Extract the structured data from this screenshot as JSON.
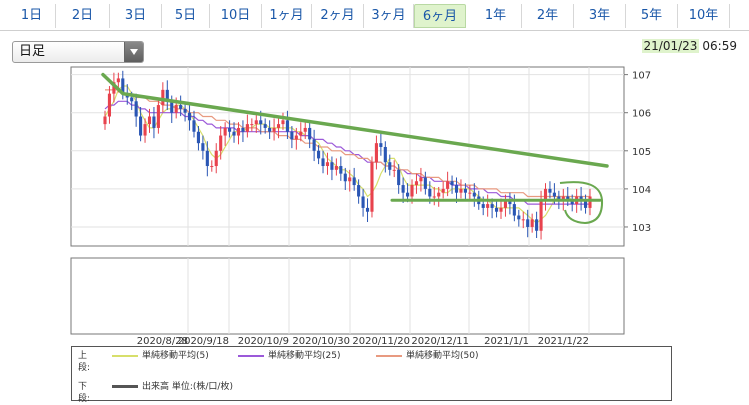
{
  "period_tabs": [
    "1日",
    "2日",
    "3日",
    "5日",
    "10日",
    "1ヶ月",
    "2ヶ月",
    "3ヶ月",
    "6ヶ月",
    "1年",
    "2年",
    "3年",
    "5年",
    "10年"
  ],
  "active_tab": "6ヶ月",
  "interval_select": {
    "value": "日足"
  },
  "datestamp": {
    "date": "21/01/23",
    "time": "06:59"
  },
  "colors": {
    "up": "#e8424d",
    "down": "#2a56b4",
    "ma5": "#d7df6b",
    "ma25": "#9b59d9",
    "ma50": "#e89a80",
    "trendline": "#6aa84f",
    "accent_tab": "#dff3cc"
  },
  "legend": {
    "upper_title": "上段:",
    "lower_title": "下段:",
    "ma5": "単純移動平均(5)",
    "ma25": "単純移動平均(25)",
    "ma50": "単純移動平均(50)",
    "volume": "出来高 単位:(株/口/枚)"
  },
  "chart_data": {
    "type": "candlestick",
    "y_ticks": [
      103,
      104,
      105,
      106,
      107
    ],
    "ylim": [
      102.5,
      107.2
    ],
    "x_ticks": [
      "2020/8/28",
      "2020/9/18",
      "2020/10/9",
      "2020/10/30",
      "2020/11/20",
      "2020/12/11",
      "2021/1/1",
      "2021/1/22"
    ],
    "close": [
      105.9,
      106.5,
      106.8,
      106.9,
      106.5,
      106.4,
      106.3,
      105.9,
      105.4,
      105.7,
      105.9,
      105.6,
      106.2,
      106.6,
      106.3,
      106.0,
      106.2,
      106.1,
      106.0,
      105.8,
      105.5,
      105.2,
      105.0,
      104.6,
      104.6,
      105.0,
      105.4,
      105.6,
      105.5,
      105.4,
      105.6,
      105.5,
      105.7,
      105.7,
      105.8,
      105.7,
      105.6,
      105.5,
      105.6,
      105.7,
      105.8,
      105.5,
      105.3,
      105.4,
      105.5,
      105.6,
      105.3,
      105.0,
      104.8,
      104.6,
      104.7,
      104.5,
      104.6,
      104.4,
      104.2,
      104.3,
      104.1,
      103.8,
      103.5,
      103.4,
      104.7,
      105.2,
      105.1,
      104.7,
      104.5,
      104.5,
      104.1,
      103.9,
      103.8,
      104.1,
      104.2,
      104.3,
      104.0,
      103.8,
      103.8,
      103.9,
      104.0,
      104.2,
      104.1,
      103.9,
      104.0,
      103.9,
      103.9,
      103.8,
      103.6,
      103.5,
      103.6,
      103.5,
      103.4,
      103.5,
      103.7,
      103.6,
      103.3,
      103.2,
      103.2,
      103.0,
      103.2,
      102.9,
      103.7,
      104.0,
      103.9,
      103.8,
      103.7,
      103.8,
      103.7,
      103.6,
      103.8,
      103.7,
      103.5,
      103.8
    ],
    "ma_series": [
      {
        "name": "単純移動平均(5)",
        "values": [
          105.9,
          106.1,
          106.3,
          106.6,
          106.7,
          106.7,
          106.5,
          106.3,
          106.0,
          105.8,
          105.6,
          105.6,
          105.8,
          106.0,
          106.1,
          106.1,
          106.2,
          106.2,
          106.1,
          106.0,
          105.8,
          105.6,
          105.4,
          105.1,
          104.9,
          104.8,
          104.9,
          105.1,
          105.3,
          105.5,
          105.5,
          105.5,
          105.6,
          105.6,
          105.7,
          105.7,
          105.7,
          105.6,
          105.6,
          105.6,
          105.6,
          105.6,
          105.6,
          105.5,
          105.5,
          105.4,
          105.4,
          105.3,
          105.2,
          105.0,
          104.8,
          104.7,
          104.6,
          104.5,
          104.5,
          104.4,
          104.3,
          104.1,
          104.0,
          103.8,
          103.9,
          104.1,
          104.4,
          104.6,
          104.8,
          104.8,
          104.6,
          104.3,
          104.1,
          104.1,
          104.1,
          104.1,
          104.1,
          104.1,
          104.0,
          104.0,
          103.9,
          103.9,
          104.0,
          104.0,
          104.0,
          104.0,
          104.0,
          103.9,
          103.8,
          103.7,
          103.7,
          103.6,
          103.5,
          103.5,
          103.5,
          103.5,
          103.5,
          103.5,
          103.4,
          103.3,
          103.2,
          103.1,
          103.2,
          103.3,
          103.5,
          103.7,
          103.8,
          103.8,
          103.8,
          103.7,
          103.7,
          103.7,
          103.7,
          103.7
        ]
      },
      {
        "name": "単純移動平均(25)",
        "values": [
          106.1,
          106.2,
          106.2,
          106.3,
          106.3,
          106.3,
          106.2,
          106.2,
          106.1,
          106.1,
          106.0,
          106.0,
          106.0,
          106.0,
          106.0,
          106.0,
          106.0,
          106.0,
          105.9,
          105.9,
          105.9,
          105.8,
          105.8,
          105.7,
          105.7,
          105.6,
          105.6,
          105.6,
          105.6,
          105.6,
          105.5,
          105.5,
          105.5,
          105.5,
          105.5,
          105.5,
          105.5,
          105.5,
          105.5,
          105.5,
          105.5,
          105.5,
          105.5,
          105.5,
          105.4,
          105.4,
          105.4,
          105.3,
          105.3,
          105.3,
          105.2,
          105.2,
          105.1,
          105.1,
          105.0,
          105.0,
          104.9,
          104.9,
          104.8,
          104.7,
          104.7,
          104.7,
          104.7,
          104.6,
          104.6,
          104.6,
          104.5,
          104.5,
          104.4,
          104.4,
          104.4,
          104.3,
          104.3,
          104.3,
          104.2,
          104.2,
          104.2,
          104.2,
          104.1,
          104.1,
          104.1,
          104.1,
          104.0,
          104.0,
          104.0,
          104.0,
          103.9,
          103.9,
          103.9,
          103.8,
          103.8,
          103.8,
          103.7,
          103.7,
          103.7,
          103.6,
          103.6,
          103.6,
          103.6,
          103.6,
          103.6,
          103.6,
          103.6,
          103.6,
          103.6,
          103.6,
          103.6,
          103.6,
          103.6,
          103.6
        ]
      },
      {
        "name": "単純移動平均(50)",
        "values": [
          106.6,
          106.6,
          106.6,
          106.6,
          106.5,
          106.5,
          106.5,
          106.4,
          106.4,
          106.4,
          106.3,
          106.3,
          106.3,
          106.2,
          106.2,
          106.2,
          106.1,
          106.1,
          106.1,
          106.0,
          106.0,
          106.0,
          105.9,
          105.9,
          105.9,
          105.8,
          105.8,
          105.8,
          105.7,
          105.7,
          105.7,
          105.6,
          105.6,
          105.6,
          105.6,
          105.5,
          105.5,
          105.5,
          105.5,
          105.4,
          105.4,
          105.4,
          105.3,
          105.3,
          105.3,
          105.2,
          105.2,
          105.2,
          105.1,
          105.1,
          105.1,
          105.0,
          105.0,
          105.0,
          104.9,
          104.9,
          104.9,
          104.8,
          104.8,
          104.8,
          104.7,
          104.7,
          104.7,
          104.6,
          104.6,
          104.6,
          104.5,
          104.5,
          104.5,
          104.4,
          104.4,
          104.4,
          104.3,
          104.3,
          104.3,
          104.3,
          104.2,
          104.2,
          104.2,
          104.2,
          104.1,
          104.1,
          104.1,
          104.1,
          104.0,
          104.0,
          104.0,
          104.0,
          104.0,
          103.9,
          103.9,
          103.9,
          103.9,
          103.9,
          103.9,
          103.8,
          103.8,
          103.8,
          103.8,
          103.8,
          103.8,
          103.8,
          103.8,
          103.8,
          103.8,
          103.8,
          103.8,
          103.8,
          103.8,
          103.8
        ]
      }
    ],
    "annotations": {
      "upper_trendline": [
        [
          107.0,
          106.9
        ],
        [
          106.5,
          106.3
        ],
        [
          104.6,
          104.0
        ]
      ],
      "support_line": 103.7
    },
    "grid": true
  }
}
